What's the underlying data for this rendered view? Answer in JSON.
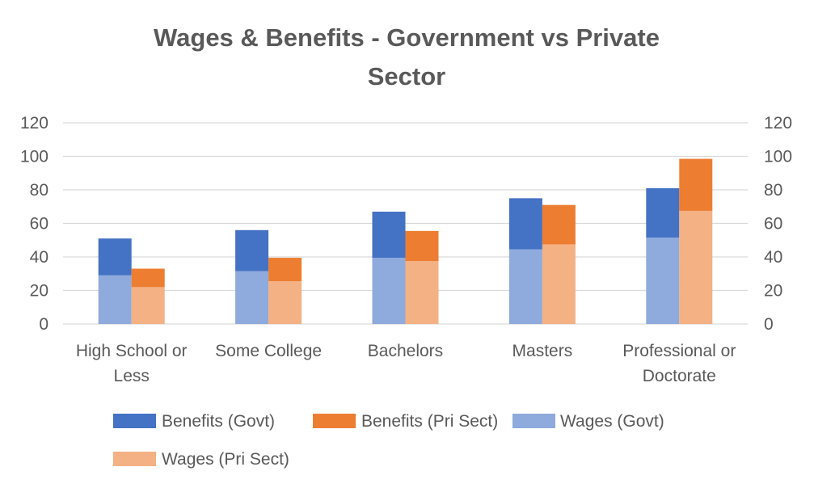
{
  "chart_data": {
    "type": "bar",
    "stacked": true,
    "title": "Wages & Benefits - Government vs Private Sector",
    "title_lines": [
      "Wages & Benefits - Government vs Private",
      "Sector"
    ],
    "categories": [
      "High School or Less",
      "Some College",
      "Bachelors",
      "Masters",
      "Professional or Doctorate"
    ],
    "category_label_lines": [
      [
        "High School or",
        "Less"
      ],
      [
        "Some College"
      ],
      [
        "Bachelors"
      ],
      [
        "Masters"
      ],
      [
        "Professional or",
        "Doctorate"
      ]
    ],
    "bar_groups": [
      {
        "name": "Government",
        "segments": [
          {
            "series": "Wages (Govt)",
            "color": "#8faadc",
            "values": [
              29,
              31.5,
              39.5,
              44.5,
              51.5
            ]
          },
          {
            "series": "Benefits (Govt)",
            "color": "#4472c4",
            "values": [
              22,
              24.5,
              27.5,
              30.5,
              29.5
            ]
          }
        ]
      },
      {
        "name": "Private Sector",
        "segments": [
          {
            "series": "Wages (Pri Sect)",
            "color": "#f4b183",
            "values": [
              22,
              25.5,
              37.5,
              47.5,
              67.5
            ]
          },
          {
            "series": "Benefits (Pri Sect)",
            "color": "#ed7d31",
            "values": [
              11,
              14,
              18,
              23.5,
              31
            ]
          }
        ]
      }
    ],
    "series": [
      {
        "name": "Benefits (Govt)",
        "color": "#4472c4",
        "values": [
          22,
          24.5,
          27.5,
          30.5,
          29.5
        ]
      },
      {
        "name": "Benefits (Pri Sect)",
        "color": "#ed7d31",
        "values": [
          11,
          14,
          18,
          23.5,
          31
        ]
      },
      {
        "name": "Wages (Govt)",
        "color": "#8faadc",
        "values": [
          29,
          31.5,
          39.5,
          44.5,
          51.5
        ]
      },
      {
        "name": "Wages (Pri Sect)",
        "color": "#f4b183",
        "values": [
          22,
          25.5,
          37.5,
          47.5,
          67.5
        ]
      }
    ],
    "ylim": [
      0,
      120
    ],
    "yticks": [
      0,
      20,
      40,
      60,
      80,
      100,
      120
    ],
    "secondary_axis": true,
    "xlabel": "",
    "ylabel": "",
    "grid": true,
    "legend": {
      "placement": "bottom",
      "entries": [
        {
          "label": "Benefits (Govt)",
          "color": "#4472c4"
        },
        {
          "label": "Benefits (Pri Sect)",
          "color": "#ed7d31"
        },
        {
          "label": "Wages (Govt)",
          "color": "#8faadc"
        },
        {
          "label": "Wages (Pri Sect)",
          "color": "#f4b183"
        }
      ]
    }
  }
}
